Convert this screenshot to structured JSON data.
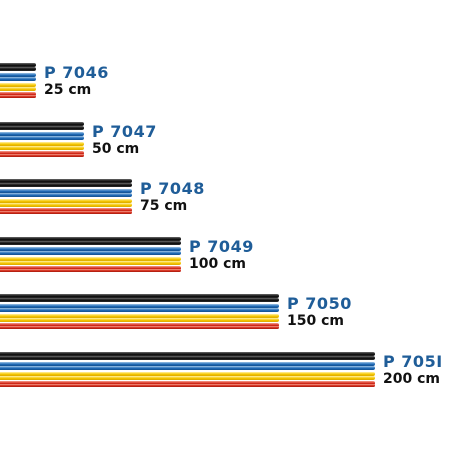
{
  "products": [
    {
      "code": "P 7046",
      "length": "25 cm"
    },
    {
      "code": "P 7047",
      "length": "50 cm"
    },
    {
      "code": "P 7048",
      "length": "75 cm"
    },
    {
      "code": "P 7049",
      "length": "100 cm"
    },
    {
      "code": "P 7050",
      "length": "150 cm"
    },
    {
      "code": "P 705I",
      "length": "200 cm"
    }
  ],
  "lead_colors": {
    "black": "#111111",
    "blue": "#1f6bb8",
    "yellow": "#f6c700",
    "red": "#d62b1a"
  }
}
